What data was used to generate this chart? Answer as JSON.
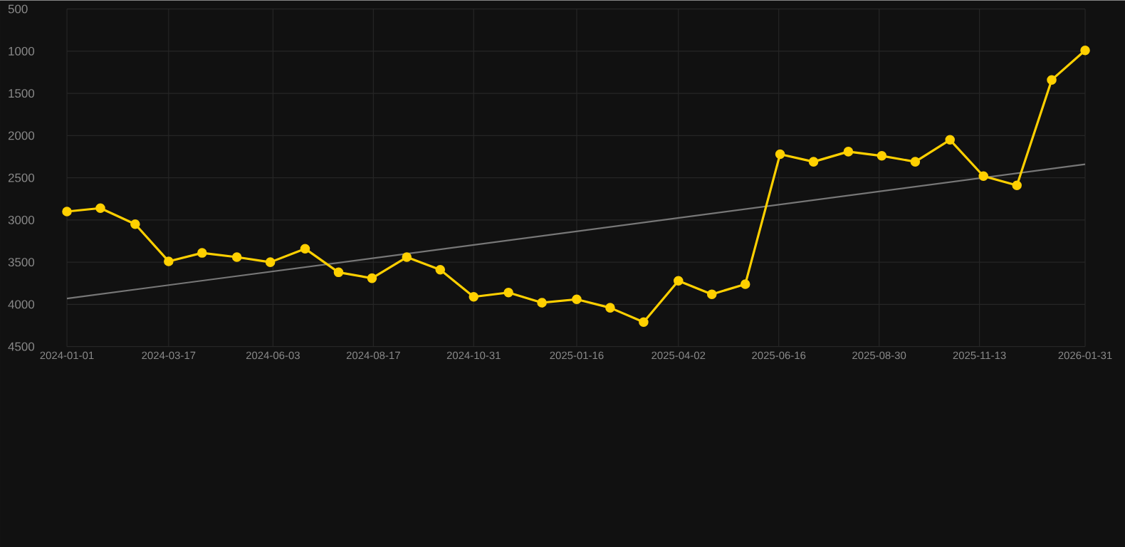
{
  "chart_data": {
    "type": "line",
    "x": [
      "2024-01-01",
      "2024-01-26",
      "2024-02-21",
      "2024-03-17",
      "2024-04-11",
      "2024-05-07",
      "2024-06-01",
      "2024-06-27",
      "2024-07-22",
      "2024-08-16",
      "2024-09-11",
      "2024-10-06",
      "2024-10-31",
      "2024-11-26",
      "2024-12-21",
      "2025-01-16",
      "2025-02-10",
      "2025-03-07",
      "2025-04-02",
      "2025-04-27",
      "2025-05-22",
      "2025-06-17",
      "2025-07-12",
      "2025-08-07",
      "2025-09-01",
      "2025-09-26",
      "2025-10-22",
      "2025-11-16",
      "2025-12-11",
      "2026-01-06",
      "2026-01-31"
    ],
    "series": [
      {
        "color": "#ffd000",
        "marker": "circle",
        "values": [
          2900,
          2860,
          3050,
          3490,
          3390,
          3440,
          3500,
          3340,
          3620,
          3690,
          3440,
          3590,
          3910,
          3860,
          3980,
          3940,
          4040,
          4210,
          3720,
          3880,
          3760,
          2220,
          2310,
          2190,
          2240,
          2310,
          2050,
          2480,
          2590,
          1340,
          990
        ]
      },
      {
        "type": "line",
        "color": "#777777",
        "marker": "none",
        "x": [
          "2024-01-01",
          "2026-01-31"
        ],
        "values": [
          3930,
          2340
        ]
      }
    ],
    "ylim": [
      4500,
      500
    ],
    "yticks": [
      500,
      1000,
      1500,
      2000,
      2500,
      3000,
      3500,
      4000,
      4500
    ],
    "xlim": [
      "2024-01-01",
      "2026-01-31"
    ],
    "xticks": [
      "2024-01-01",
      "2024-03-17",
      "2024-06-03",
      "2024-08-17",
      "2024-10-31",
      "2025-01-16",
      "2025-04-02",
      "2025-06-16",
      "2025-08-30",
      "2025-11-13",
      "2026-01-31"
    ],
    "grid": true,
    "line_style": "solid"
  }
}
